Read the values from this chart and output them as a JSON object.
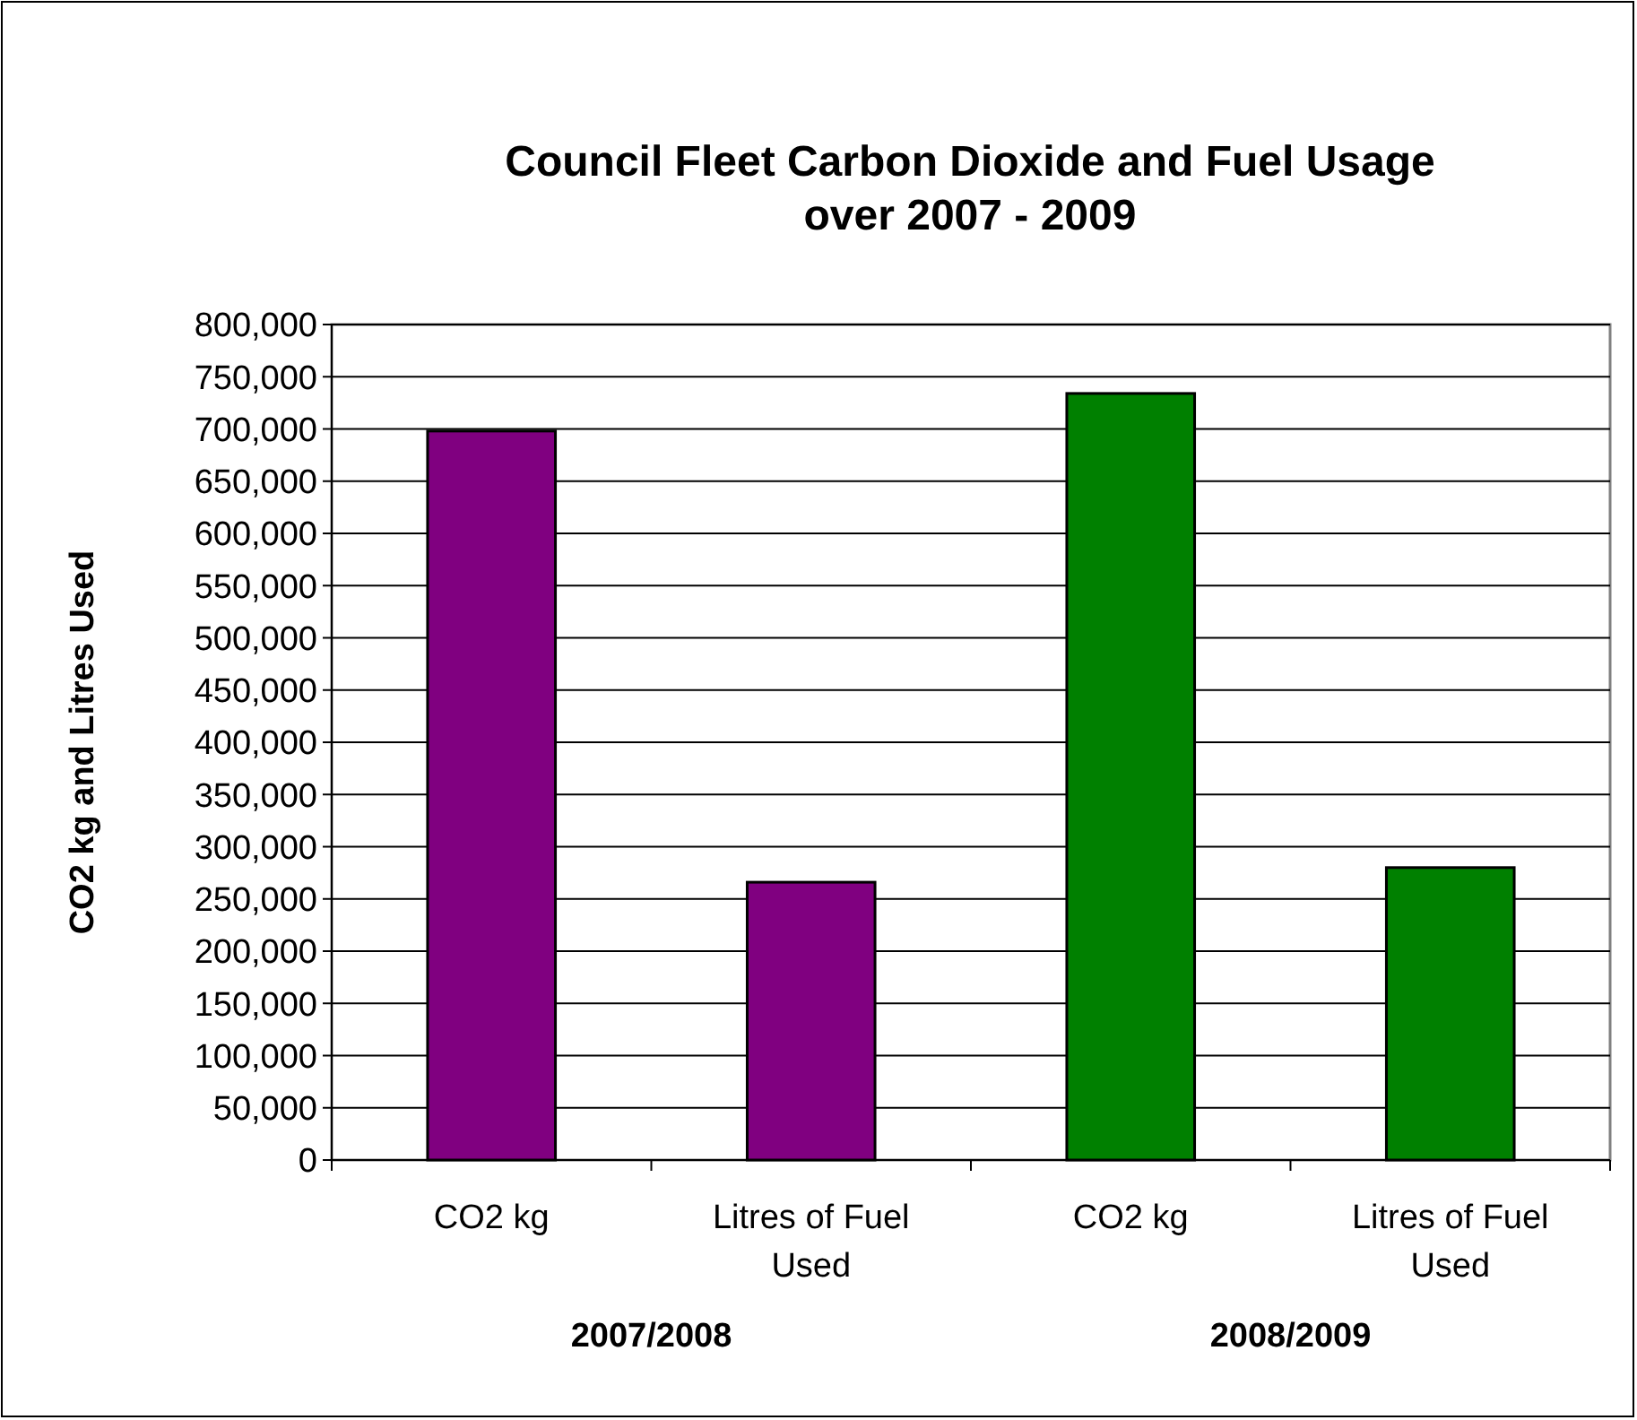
{
  "chart_data": {
    "type": "bar",
    "title": "Council Fleet Carbon Dioxide and Fuel Usage\nover 2007 - 2009",
    "ylabel": "CO2 kg and Litres Used",
    "categories": [
      "CO2 kg",
      "Litres of Fuel Used",
      "CO2 kg",
      "Litres of Fuel Used"
    ],
    "values": [
      698000,
      266000,
      734000,
      280000
    ],
    "colors": [
      "#800080",
      "#800080",
      "#008000",
      "#008000"
    ],
    "annotations": [
      "2007/2008",
      "2008/2009"
    ],
    "ylim": [
      0,
      800000
    ],
    "yticks": [
      {
        "value": 0,
        "label": "0"
      },
      {
        "value": 50000,
        "label": "50,000"
      },
      {
        "value": 100000,
        "label": "100,000"
      },
      {
        "value": 150000,
        "label": "150,000"
      },
      {
        "value": 200000,
        "label": "200,000"
      },
      {
        "value": 250000,
        "label": "250,000"
      },
      {
        "value": 300000,
        "label": "300,000"
      },
      {
        "value": 350000,
        "label": "350,000"
      },
      {
        "value": 400000,
        "label": "400,000"
      },
      {
        "value": 450000,
        "label": "450,000"
      },
      {
        "value": 500000,
        "label": "500,000"
      },
      {
        "value": 550000,
        "label": "550,000"
      },
      {
        "value": 600000,
        "label": "600,000"
      },
      {
        "value": 650000,
        "label": "650,000"
      },
      {
        "value": 700000,
        "label": "700,000"
      },
      {
        "value": 750000,
        "label": "750,000"
      },
      {
        "value": 800000,
        "label": "800,000"
      }
    ],
    "grid": "y"
  }
}
